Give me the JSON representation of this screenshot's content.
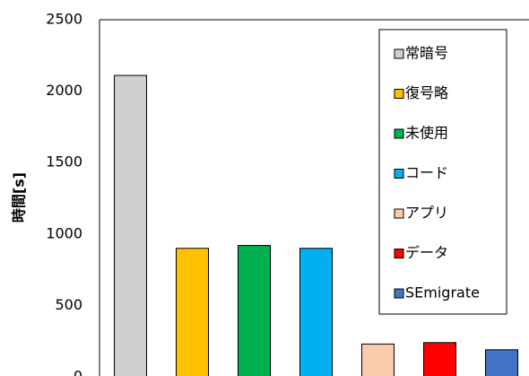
{
  "chart_data": {
    "type": "bar",
    "y_label": "時間[s]",
    "categories": [
      "常暗号",
      "復号略",
      "未使用",
      "コード",
      "アプリ",
      "データ",
      "SEmigrate"
    ],
    "values": [
      2110,
      900,
      920,
      900,
      230,
      240,
      190
    ],
    "colors": [
      "#d0cece",
      "#ffc000",
      "#00b050",
      "#00b0f0",
      "#f8cbad",
      "#ff0000",
      "#4472c4"
    ],
    "ylim": [
      0,
      2500
    ],
    "yticks": [
      0,
      500,
      1000,
      1500,
      2000,
      2500
    ],
    "grid": false,
    "legend": "upper right"
  }
}
